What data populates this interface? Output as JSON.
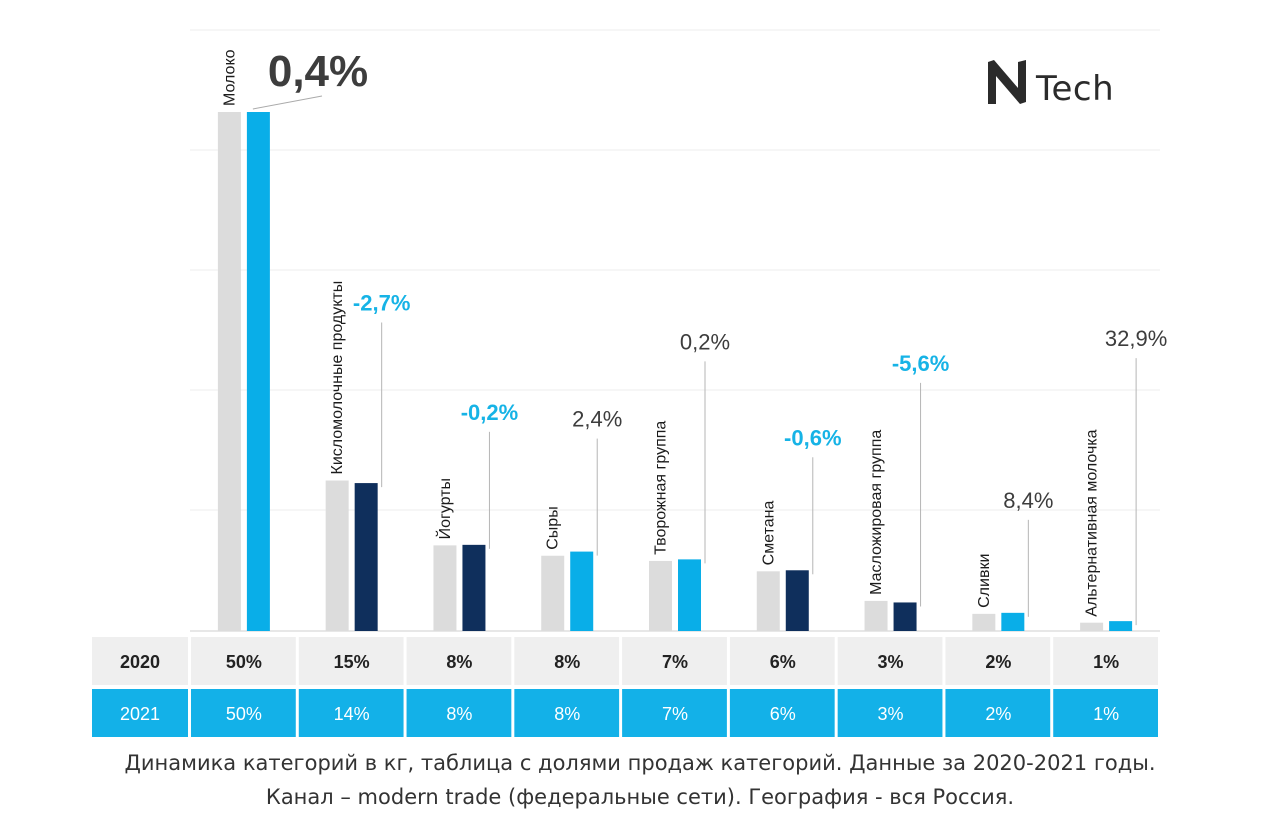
{
  "logo": {
    "mark": "N",
    "text": "Tech"
  },
  "caption": {
    "line1": "Динамика категорий в кг, таблица с долями продаж категорий.  Данные за 2020-2021 годы.",
    "line2": "Канал – modern trade (федеральные сети). География - вся Россия."
  },
  "colors": {
    "bar_2020": "#dcdcdc",
    "bar_2021_light": "#09aee8",
    "bar_2021_dark": "#0f2f5c",
    "change_negative": "#16b3e6",
    "change_positive": "#3d3d3d",
    "row_2020_bg": "#efefef",
    "row_2021_bg": "#13b1e8"
  },
  "chart_data": {
    "type": "bar",
    "categories": [
      "Молоко",
      "Кисломолочные  продукты",
      "Йогурты",
      "Сыры",
      "Творожная группа",
      "Сметана",
      "Масложировая группа",
      "Сливки",
      "Альтернативная молочка"
    ],
    "series": [
      {
        "name": "2020",
        "values": [
          50,
          15,
          8,
          8,
          7,
          6,
          3,
          2,
          1
        ]
      },
      {
        "name": "2021",
        "values": [
          50,
          14,
          8,
          8,
          7,
          6,
          3,
          2,
          1
        ]
      }
    ],
    "bar_relative_heights": {
      "2020": [
        100,
        29,
        16.5,
        14.5,
        13.5,
        11.5,
        5.8,
        3.3,
        1.6
      ],
      "2021": [
        100,
        28.5,
        16.6,
        15.3,
        13.8,
        11.7,
        5.5,
        3.5,
        1.9
      ]
    },
    "bar_2021_color": [
      "light",
      "dark",
      "dark",
      "light",
      "light",
      "dark",
      "dark",
      "light",
      "light"
    ],
    "changes": [
      "0,4%",
      "-2,7%",
      "-0,2%",
      "2,4%",
      "0,2%",
      "-0,6%",
      "-5,6%",
      "8,4%",
      "32,9%"
    ],
    "table": {
      "rows": [
        {
          "label": "2020",
          "values": [
            "50%",
            "15%",
            "8%",
            "8%",
            "7%",
            "6%",
            "3%",
            "2%",
            "1%"
          ]
        },
        {
          "label": "2021",
          "values": [
            "50%",
            "14%",
            "8%",
            "8%",
            "7%",
            "6%",
            "3%",
            "2%",
            "1%"
          ]
        }
      ]
    },
    "grid": true
  }
}
